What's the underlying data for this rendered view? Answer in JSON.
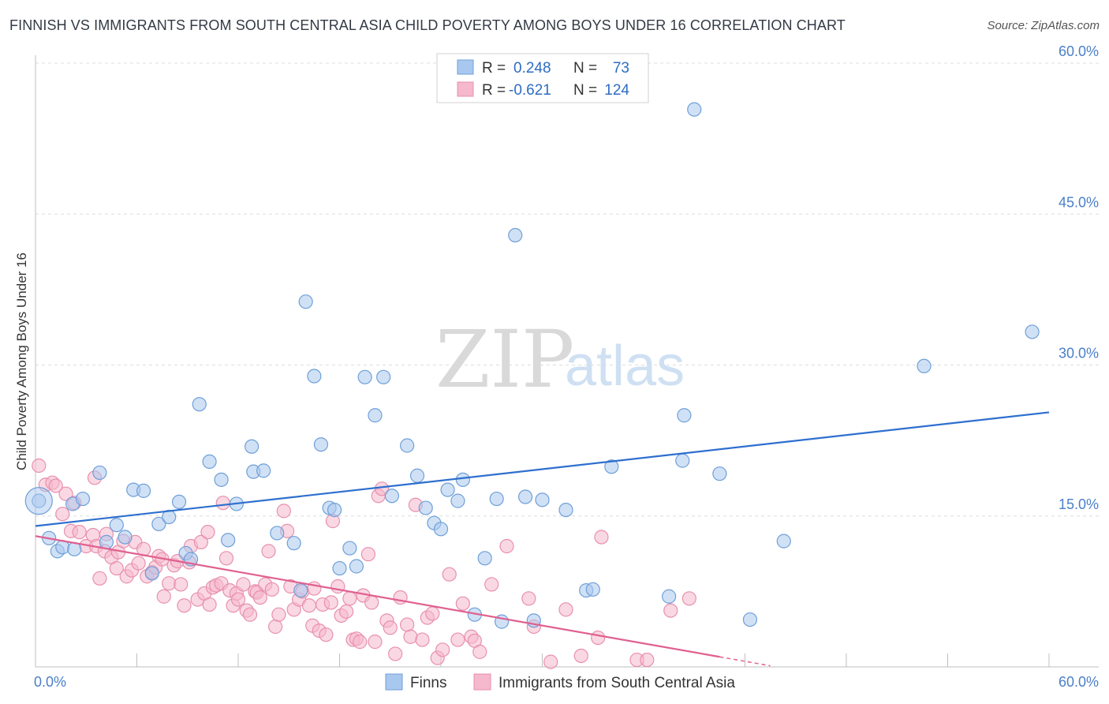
{
  "title": "FINNISH VS IMMIGRANTS FROM SOUTH CENTRAL ASIA CHILD POVERTY AMONG BOYS UNDER 16 CORRELATION CHART",
  "source": "Source: ZipAtlas.com",
  "watermark": {
    "part1": "ZIP",
    "part2": "atlas"
  },
  "colors": {
    "finns_fill": "#a9c8ef",
    "finns_stroke": "#6f9fd8",
    "finns_line": "#2e6fcf",
    "imm_fill": "#f5b8cc",
    "imm_stroke": "#e890ad",
    "imm_line": "#e0608f",
    "axis_label": "#4a7fc9",
    "grid": "#dddddd"
  },
  "legend": {
    "row1": {
      "r_label": "R =",
      "r_value": "0.248",
      "n_label": "N =",
      "n_value": "73"
    },
    "row2": {
      "r_label": "R =",
      "r_value": "-0.621",
      "n_label": "N =",
      "n_value": "124"
    }
  },
  "bottom_legend": {
    "finns": "Finns",
    "immigrants": "Immigrants from South Central Asia"
  },
  "chart_data": {
    "type": "scatter",
    "title": "FINNISH VS IMMIGRANTS FROM SOUTH CENTRAL ASIA CHILD POVERTY AMONG BOYS UNDER 16 CORRELATION CHART",
    "xlabel": "",
    "ylabel": "Child Poverty Among Boys Under 16",
    "xlim": [
      0,
      60
    ],
    "ylim": [
      0,
      60
    ],
    "x_tick_labels": [
      "0.0%",
      "60.0%"
    ],
    "y_tick_labels": [
      "15.0%",
      "30.0%",
      "45.0%",
      "60.0%"
    ],
    "y_ticks": [
      15,
      30,
      45,
      60
    ],
    "series": [
      {
        "name": "Finns",
        "r": 0.248,
        "n": 73,
        "trend": {
          "x0": 0,
          "y0": 14.0,
          "x1": 60,
          "y1": 25.3
        },
        "points": [
          [
            0.2,
            16.5
          ],
          [
            0.8,
            12.8
          ],
          [
            1.3,
            11.5
          ],
          [
            1.6,
            11.9
          ],
          [
            2.2,
            16.2
          ],
          [
            2.3,
            11.7
          ],
          [
            2.8,
            16.7
          ],
          [
            3.8,
            19.3
          ],
          [
            4.2,
            12.4
          ],
          [
            4.8,
            14.1
          ],
          [
            5.3,
            12.9
          ],
          [
            5.8,
            17.6
          ],
          [
            6.4,
            17.5
          ],
          [
            6.9,
            9.3
          ],
          [
            7.3,
            14.2
          ],
          [
            7.9,
            14.9
          ],
          [
            8.5,
            16.4
          ],
          [
            8.9,
            11.3
          ],
          [
            9.2,
            10.7
          ],
          [
            9.7,
            26.1
          ],
          [
            10.3,
            20.4
          ],
          [
            11.0,
            18.6
          ],
          [
            11.4,
            12.6
          ],
          [
            11.9,
            16.2
          ],
          [
            12.8,
            21.9
          ],
          [
            12.9,
            19.4
          ],
          [
            13.5,
            19.5
          ],
          [
            14.3,
            13.3
          ],
          [
            15.3,
            12.3
          ],
          [
            15.7,
            7.6
          ],
          [
            16.0,
            36.3
          ],
          [
            16.5,
            28.9
          ],
          [
            16.9,
            22.1
          ],
          [
            17.4,
            15.8
          ],
          [
            17.7,
            15.6
          ],
          [
            18.0,
            9.8
          ],
          [
            18.6,
            11.8
          ],
          [
            19.0,
            10.0
          ],
          [
            19.5,
            28.8
          ],
          [
            20.1,
            25.0
          ],
          [
            20.6,
            28.8
          ],
          [
            21.1,
            17.0
          ],
          [
            22.0,
            22.0
          ],
          [
            22.6,
            19.0
          ],
          [
            23.1,
            15.8
          ],
          [
            23.6,
            14.3
          ],
          [
            24.0,
            13.7
          ],
          [
            24.4,
            17.6
          ],
          [
            25.0,
            16.5
          ],
          [
            25.3,
            18.6
          ],
          [
            26.0,
            5.2
          ],
          [
            26.6,
            10.8
          ],
          [
            27.3,
            16.7
          ],
          [
            27.6,
            4.5
          ],
          [
            28.4,
            42.9
          ],
          [
            29.0,
            16.9
          ],
          [
            29.5,
            4.6
          ],
          [
            30.0,
            16.6
          ],
          [
            31.4,
            15.6
          ],
          [
            32.6,
            7.6
          ],
          [
            33.0,
            7.7
          ],
          [
            34.1,
            19.9
          ],
          [
            37.5,
            7.0
          ],
          [
            38.3,
            20.5
          ],
          [
            38.4,
            25.0
          ],
          [
            39.0,
            55.4
          ],
          [
            40.5,
            19.2
          ],
          [
            42.3,
            4.7
          ],
          [
            44.3,
            12.5
          ],
          [
            52.6,
            29.9
          ],
          [
            59.0,
            33.3
          ]
        ]
      },
      {
        "name": "Immigrants from South Central Asia",
        "r": -0.621,
        "n": 124,
        "trend": {
          "x0": 0,
          "y0": 13.0,
          "x1": 40.5,
          "y1": 1.0
        },
        "points": [
          [
            0.2,
            20.0
          ],
          [
            0.6,
            18.1
          ],
          [
            1.0,
            18.3
          ],
          [
            1.2,
            18.0
          ],
          [
            1.6,
            15.2
          ],
          [
            1.8,
            17.2
          ],
          [
            2.1,
            13.5
          ],
          [
            2.3,
            16.3
          ],
          [
            2.6,
            13.4
          ],
          [
            3.0,
            12.0
          ],
          [
            3.4,
            13.1
          ],
          [
            3.5,
            18.8
          ],
          [
            3.6,
            12.0
          ],
          [
            3.8,
            8.8
          ],
          [
            4.1,
            11.5
          ],
          [
            4.2,
            13.2
          ],
          [
            4.5,
            10.9
          ],
          [
            4.8,
            9.8
          ],
          [
            4.9,
            11.4
          ],
          [
            5.2,
            12.5
          ],
          [
            5.4,
            9.0
          ],
          [
            5.7,
            9.6
          ],
          [
            5.9,
            12.4
          ],
          [
            6.1,
            10.3
          ],
          [
            6.4,
            11.7
          ],
          [
            6.6,
            9.0
          ],
          [
            6.9,
            9.4
          ],
          [
            7.1,
            9.9
          ],
          [
            7.3,
            11.0
          ],
          [
            7.5,
            10.7
          ],
          [
            7.6,
            7.0
          ],
          [
            7.9,
            8.3
          ],
          [
            8.2,
            10.1
          ],
          [
            8.4,
            10.5
          ],
          [
            8.6,
            8.2
          ],
          [
            8.8,
            6.1
          ],
          [
            9.1,
            10.4
          ],
          [
            9.2,
            12.0
          ],
          [
            9.6,
            6.7
          ],
          [
            9.8,
            12.4
          ],
          [
            10.0,
            7.3
          ],
          [
            10.2,
            13.4
          ],
          [
            10.3,
            6.2
          ],
          [
            10.5,
            7.9
          ],
          [
            10.7,
            8.1
          ],
          [
            11.0,
            8.3
          ],
          [
            11.1,
            16.3
          ],
          [
            11.3,
            10.8
          ],
          [
            11.5,
            7.6
          ],
          [
            11.7,
            6.1
          ],
          [
            11.9,
            7.3
          ],
          [
            12.0,
            6.7
          ],
          [
            12.3,
            8.2
          ],
          [
            12.5,
            5.6
          ],
          [
            12.7,
            5.2
          ],
          [
            13.0,
            7.5
          ],
          [
            13.1,
            7.4
          ],
          [
            13.3,
            6.9
          ],
          [
            13.6,
            8.2
          ],
          [
            13.8,
            11.5
          ],
          [
            14.0,
            7.7
          ],
          [
            14.2,
            4.0
          ],
          [
            14.4,
            5.2
          ],
          [
            14.7,
            15.5
          ],
          [
            14.9,
            13.5
          ],
          [
            15.1,
            8.0
          ],
          [
            15.3,
            5.7
          ],
          [
            15.6,
            6.7
          ],
          [
            15.8,
            7.5
          ],
          [
            16.2,
            6.1
          ],
          [
            16.4,
            4.1
          ],
          [
            16.5,
            7.8
          ],
          [
            16.8,
            3.6
          ],
          [
            17.0,
            6.2
          ],
          [
            17.2,
            3.2
          ],
          [
            17.5,
            6.4
          ],
          [
            17.6,
            14.5
          ],
          [
            17.9,
            8.0
          ],
          [
            18.1,
            5.1
          ],
          [
            18.4,
            5.5
          ],
          [
            18.6,
            6.8
          ],
          [
            18.8,
            2.7
          ],
          [
            19.0,
            2.8
          ],
          [
            19.2,
            2.5
          ],
          [
            19.4,
            7.1
          ],
          [
            19.7,
            11.2
          ],
          [
            19.9,
            6.4
          ],
          [
            20.1,
            2.5
          ],
          [
            20.3,
            17.0
          ],
          [
            20.5,
            17.7
          ],
          [
            20.8,
            4.6
          ],
          [
            21.0,
            3.9
          ],
          [
            21.3,
            1.3
          ],
          [
            21.6,
            6.9
          ],
          [
            22.0,
            4.2
          ],
          [
            22.2,
            3.0
          ],
          [
            22.5,
            16.1
          ],
          [
            22.9,
            2.7
          ],
          [
            23.2,
            4.9
          ],
          [
            23.5,
            5.3
          ],
          [
            23.8,
            0.9
          ],
          [
            24.1,
            1.7
          ],
          [
            24.5,
            9.2
          ],
          [
            25.0,
            2.7
          ],
          [
            25.3,
            6.3
          ],
          [
            25.8,
            3.0
          ],
          [
            26.0,
            2.6
          ],
          [
            26.3,
            1.5
          ],
          [
            27.0,
            8.2
          ],
          [
            27.9,
            12.0
          ],
          [
            29.2,
            6.8
          ],
          [
            29.5,
            4.0
          ],
          [
            30.5,
            0.5
          ],
          [
            31.4,
            5.7
          ],
          [
            32.3,
            1.1
          ],
          [
            33.3,
            2.9
          ],
          [
            33.5,
            12.9
          ],
          [
            35.6,
            0.7
          ],
          [
            36.2,
            0.7
          ],
          [
            37.6,
            5.6
          ],
          [
            38.7,
            6.8
          ]
        ]
      }
    ]
  }
}
